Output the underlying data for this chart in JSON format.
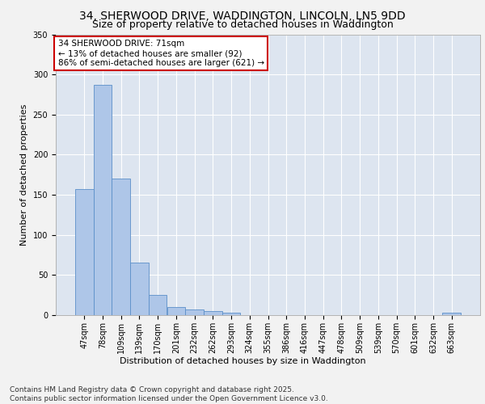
{
  "title1": "34, SHERWOOD DRIVE, WADDINGTON, LINCOLN, LN5 9DD",
  "title2": "Size of property relative to detached houses in Waddington",
  "xlabel": "Distribution of detached houses by size in Waddington",
  "ylabel": "Number of detached properties",
  "categories": [
    "47sqm",
    "78sqm",
    "109sqm",
    "139sqm",
    "170sqm",
    "201sqm",
    "232sqm",
    "262sqm",
    "293sqm",
    "324sqm",
    "355sqm",
    "386sqm",
    "416sqm",
    "447sqm",
    "478sqm",
    "509sqm",
    "539sqm",
    "570sqm",
    "601sqm",
    "632sqm",
    "663sqm"
  ],
  "values": [
    157,
    287,
    170,
    65,
    25,
    10,
    7,
    5,
    3,
    0,
    0,
    0,
    0,
    0,
    0,
    0,
    0,
    0,
    0,
    0,
    3
  ],
  "bar_color": "#aec6e8",
  "bar_edge_color": "#5b8fc9",
  "annotation_line1": "34 SHERWOOD DRIVE: 71sqm",
  "annotation_line2": "← 13% of detached houses are smaller (92)",
  "annotation_line3": "86% of semi-detached houses are larger (621) →",
  "annotation_box_color": "#ffffff",
  "annotation_box_edge": "#cc0000",
  "ylim": [
    0,
    350
  ],
  "yticks": [
    0,
    50,
    100,
    150,
    200,
    250,
    300,
    350
  ],
  "background_color": "#dde5f0",
  "grid_color": "#ffffff",
  "fig_background": "#f2f2f2",
  "footer_text": "Contains HM Land Registry data © Crown copyright and database right 2025.\nContains public sector information licensed under the Open Government Licence v3.0.",
  "title_fontsize": 10,
  "subtitle_fontsize": 9,
  "axis_label_fontsize": 8,
  "tick_fontsize": 7,
  "annotation_fontsize": 7.5,
  "footer_fontsize": 6.5
}
